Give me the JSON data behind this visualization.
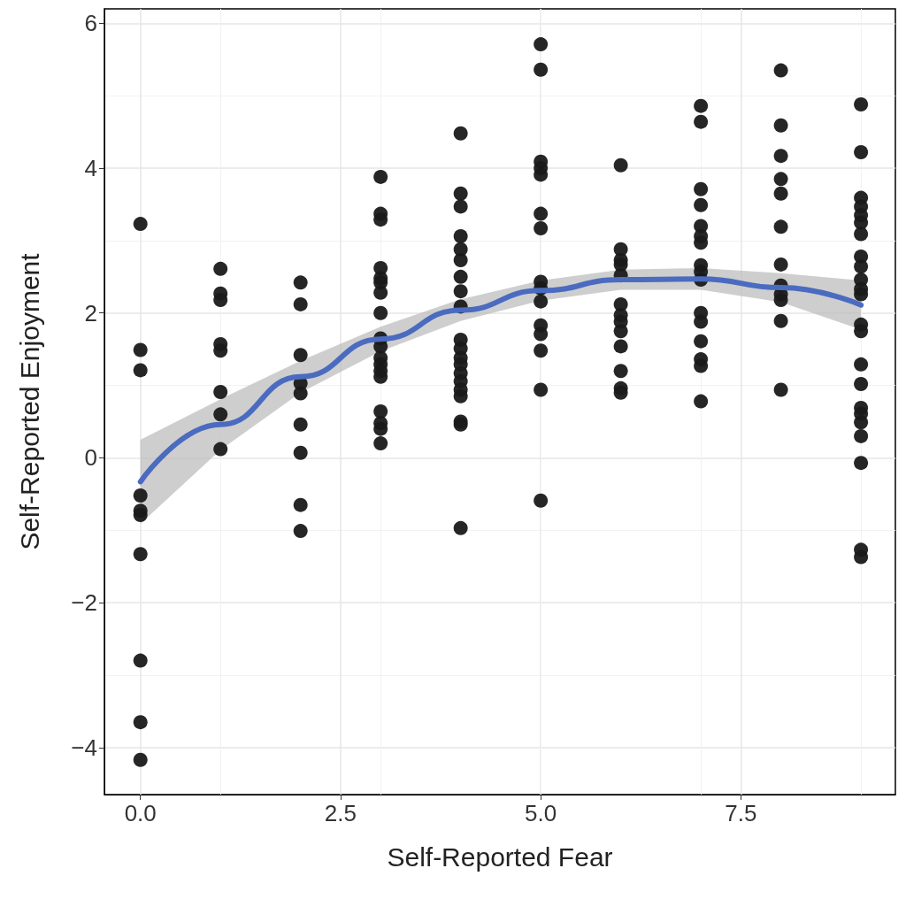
{
  "chart_data": {
    "type": "scatter",
    "xlabel": "Self-Reported Fear",
    "ylabel": "Self-Reported Enjoyment",
    "xlim": [
      -0.45,
      9.43
    ],
    "ylim": [
      -4.65,
      6.2
    ],
    "xticks": [
      {
        "value": 0,
        "label": "0.0"
      },
      {
        "value": 2.5,
        "label": "2.5"
      },
      {
        "value": 5,
        "label": "5.0"
      },
      {
        "value": 7.5,
        "label": "7.5"
      }
    ],
    "yticks": [
      {
        "value": -4,
        "label": "−4"
      },
      {
        "value": -2,
        "label": "−2"
      },
      0,
      2,
      4,
      6
    ],
    "grid": true,
    "series": [
      {
        "marker": "circle",
        "color": "#1a1a1a",
        "x": [
          0,
          0,
          0,
          0,
          0,
          0,
          0,
          0,
          0,
          0,
          1,
          1,
          1,
          1,
          1,
          1,
          1,
          1,
          2,
          2,
          2,
          2,
          2,
          2,
          2,
          2,
          2,
          3,
          3,
          3,
          3,
          3,
          3,
          3,
          3,
          3,
          3,
          3,
          3,
          3,
          3,
          3,
          3,
          3,
          3,
          4,
          4,
          4,
          4,
          4,
          4,
          4,
          4,
          4,
          4,
          4,
          4,
          4,
          4,
          4,
          4,
          4,
          4,
          4,
          4,
          5,
          5,
          5,
          5,
          5,
          5,
          5,
          5,
          5,
          5,
          5,
          5,
          5,
          5,
          5,
          6,
          6,
          6,
          6,
          6,
          6,
          6,
          6,
          6,
          6,
          6,
          6,
          6,
          7,
          7,
          7,
          7,
          7,
          7,
          7,
          7,
          7,
          7,
          7,
          7,
          7,
          7,
          7,
          7,
          8,
          8,
          8,
          8,
          8,
          8,
          8,
          8,
          8,
          8,
          8,
          8,
          9,
          9,
          9,
          9,
          9,
          9,
          9,
          9,
          9,
          9,
          9,
          9,
          9,
          9,
          9,
          9,
          9,
          9,
          9,
          9,
          9,
          9,
          9
        ],
        "values": [
          3.23,
          1.49,
          1.21,
          -0.52,
          -0.73,
          -0.79,
          -1.33,
          -2.8,
          -3.65,
          -4.17,
          2.61,
          2.27,
          2.18,
          1.57,
          1.48,
          0.91,
          0.6,
          0.12,
          2.42,
          2.12,
          1.42,
          1.03,
          0.89,
          0.46,
          0.07,
          -0.65,
          -1.01,
          3.88,
          3.37,
          3.29,
          2.62,
          2.48,
          2.42,
          2.28,
          2.0,
          1.65,
          1.54,
          1.38,
          1.29,
          1.2,
          1.12,
          0.64,
          0.48,
          0.4,
          0.2,
          4.48,
          3.65,
          3.47,
          3.06,
          2.88,
          2.73,
          2.5,
          2.3,
          2.09,
          1.63,
          1.51,
          1.38,
          1.29,
          1.17,
          1.06,
          0.94,
          0.85,
          0.5,
          0.46,
          -0.97,
          5.71,
          5.36,
          4.09,
          4.0,
          3.91,
          3.37,
          3.17,
          2.43,
          2.34,
          2.16,
          1.83,
          1.71,
          1.48,
          0.94,
          -0.59,
          4.04,
          2.88,
          2.73,
          2.67,
          2.52,
          2.12,
          1.97,
          1.88,
          1.75,
          1.54,
          1.2,
          0.96,
          0.9,
          4.86,
          4.64,
          3.71,
          3.49,
          3.2,
          3.06,
          2.97,
          2.66,
          2.57,
          2.46,
          2.0,
          1.88,
          1.61,
          1.36,
          1.27,
          0.78,
          5.35,
          4.59,
          4.17,
          3.85,
          3.65,
          3.19,
          2.67,
          2.38,
          2.26,
          2.18,
          1.89,
          0.94,
          4.88,
          4.22,
          3.59,
          3.47,
          3.35,
          3.25,
          3.09,
          2.78,
          2.64,
          2.46,
          2.33,
          2.26,
          1.84,
          1.75,
          1.29,
          1.02,
          0.69,
          0.61,
          0.49,
          0.3,
          -0.07,
          -1.27,
          -1.37
        ]
      },
      {
        "type": "line",
        "marker": "none",
        "color": "#4a6bbf",
        "x": [
          0,
          1,
          2,
          3,
          4,
          5,
          6,
          7,
          8,
          9
        ],
        "values": [
          -0.33,
          0.46,
          1.12,
          1.64,
          2.04,
          2.31,
          2.46,
          2.47,
          2.35,
          2.11
        ],
        "lower": [
          -0.91,
          0.11,
          0.9,
          1.47,
          1.89,
          2.17,
          2.32,
          2.32,
          2.15,
          1.77
        ],
        "upper": [
          0.25,
          0.81,
          1.34,
          1.81,
          2.19,
          2.45,
          2.6,
          2.62,
          2.55,
          2.45
        ]
      }
    ]
  }
}
